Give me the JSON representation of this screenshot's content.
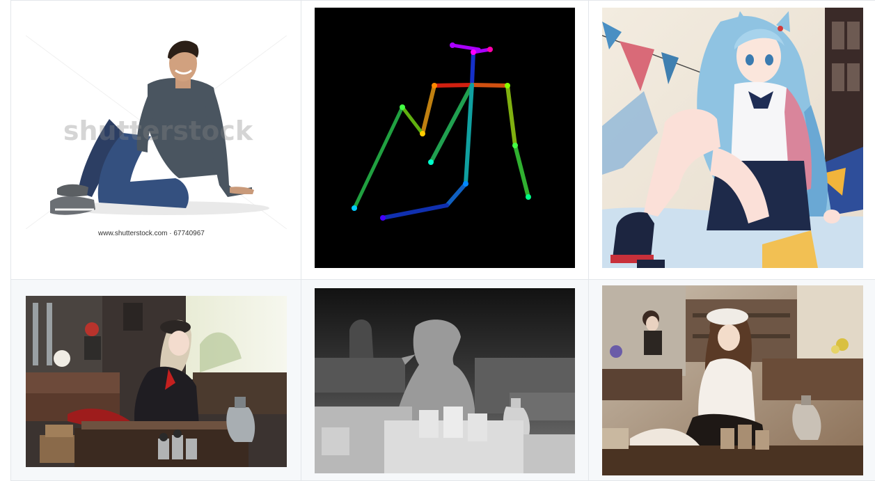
{
  "gallery": {
    "items": [
      {
        "name": "photo-man-sitting",
        "watermark": "shutterstock",
        "caption": "www.shutterstock.com · 67740967"
      },
      {
        "name": "openpose-skeleton"
      },
      {
        "name": "anime-girl-sitting"
      },
      {
        "name": "cafe-scene"
      },
      {
        "name": "cafe-depth-map"
      },
      {
        "name": "cafe-anime-generated"
      }
    ]
  },
  "colors": {
    "grid_line": "#e3e6ea",
    "row2_bg": "#f6f8fa",
    "pose_bg": "#000000"
  }
}
